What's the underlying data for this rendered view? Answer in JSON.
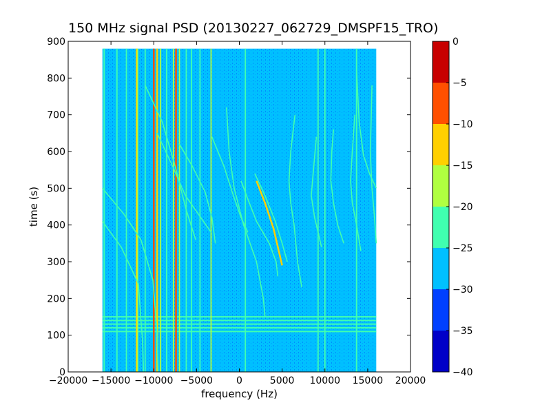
{
  "chart_data": {
    "type": "heatmap",
    "title": "150 MHz signal PSD (20130227_062729_DMSPF15_TRO)",
    "xlabel": "frequency (Hz)",
    "ylabel": "time (s)",
    "xlim": [
      -20000,
      20000
    ],
    "ylim": [
      0,
      900
    ],
    "xticks": [
      -20000,
      -15000,
      -10000,
      -5000,
      0,
      5000,
      10000,
      15000,
      20000
    ],
    "yticks": [
      0,
      100,
      200,
      300,
      400,
      500,
      600,
      700,
      800,
      900
    ],
    "data_extent": {
      "x": [
        -16000,
        16000
      ],
      "y": [
        0,
        880
      ]
    },
    "background_level": -27,
    "grid": false,
    "colorbar": {
      "levels": [
        -40,
        -35,
        -30,
        -25,
        -20,
        -15,
        -10,
        -5,
        0
      ],
      "ticks": [
        -40,
        -35,
        -30,
        -25,
        -20,
        -15,
        -10,
        -5,
        0
      ],
      "colors": [
        "#0000c8",
        "#0040ff",
        "#00c0ff",
        "#40ffb0",
        "#b0ff40",
        "#ffd000",
        "#ff5000",
        "#c80000"
      ]
    },
    "vertical_lines": [
      {
        "x": -15800,
        "level": -22
      },
      {
        "x": -14300,
        "level": -22
      },
      {
        "x": -13200,
        "level": -22
      },
      {
        "x": -12000,
        "level": -12
      },
      {
        "x": -11900,
        "level": -20
      },
      {
        "x": -11000,
        "level": -22
      },
      {
        "x": -10000,
        "level": -8
      },
      {
        "x": -9600,
        "level": -12
      },
      {
        "x": -9200,
        "level": -20
      },
      {
        "x": -8500,
        "level": -22
      },
      {
        "x": -7700,
        "level": -20
      },
      {
        "x": -7400,
        "level": -8
      },
      {
        "x": -7000,
        "level": -20
      },
      {
        "x": -6200,
        "level": -22
      },
      {
        "x": -5600,
        "level": -22
      },
      {
        "x": -4600,
        "level": -22
      },
      {
        "x": -3300,
        "level": -18
      },
      {
        "x": 700,
        "level": -22
      },
      {
        "x": 9200,
        "level": -22
      },
      {
        "x": 10000,
        "level": -22
      },
      {
        "x": 13700,
        "level": -22
      }
    ],
    "horizontal_bands": [
      {
        "y": 150,
        "level": -22
      },
      {
        "y": 140,
        "level": -22
      },
      {
        "y": 130,
        "level": -22
      },
      {
        "y": 120,
        "level": -22
      },
      {
        "y": 110,
        "level": -22
      }
    ],
    "doppler_tracks": [
      {
        "points": [
          [
            -16000,
            500
          ],
          [
            -13500,
            430
          ],
          [
            -11500,
            360
          ],
          [
            -10100,
            250
          ],
          [
            -9600,
            100
          ],
          [
            -9500,
            0
          ]
        ],
        "level": -22
      },
      {
        "points": [
          [
            -16000,
            410
          ],
          [
            -13800,
            340
          ],
          [
            -11800,
            240
          ],
          [
            -11300,
            80
          ],
          [
            -11200,
            0
          ]
        ],
        "level": -22
      },
      {
        "points": [
          [
            -11000,
            780
          ],
          [
            -9000,
            680
          ],
          [
            -7500,
            560
          ],
          [
            -6200,
            440
          ],
          [
            -5100,
            360
          ]
        ],
        "level": -22
      },
      {
        "points": [
          [
            -9600,
            650
          ],
          [
            -7800,
            560
          ],
          [
            -6300,
            480
          ],
          [
            -4500,
            420
          ],
          [
            -3300,
            380
          ]
        ],
        "level": -22
      },
      {
        "points": [
          [
            -7000,
            620
          ],
          [
            -5500,
            560
          ],
          [
            -4000,
            490
          ],
          [
            -3200,
            420
          ],
          [
            -2800,
            350
          ]
        ],
        "level": -22
      },
      {
        "points": [
          [
            -1500,
            720
          ],
          [
            -1200,
            600
          ],
          [
            -600,
            500
          ],
          [
            500,
            400
          ],
          [
            2000,
            300
          ],
          [
            2800,
            200
          ],
          [
            3000,
            150
          ]
        ],
        "level": -22
      },
      {
        "points": [
          [
            -3200,
            640
          ],
          [
            -1800,
            560
          ],
          [
            -700,
            480
          ],
          [
            200,
            420
          ],
          [
            1000,
            380
          ]
        ],
        "level": -22
      },
      {
        "points": [
          [
            200,
            520
          ],
          [
            1000,
            470
          ],
          [
            2000,
            410
          ],
          [
            3500,
            350
          ],
          [
            4300,
            300
          ],
          [
            4500,
            260
          ]
        ],
        "level": -22
      },
      {
        "points": [
          [
            2000,
            520
          ],
          [
            3000,
            460
          ],
          [
            4000,
            390
          ],
          [
            4700,
            320
          ],
          [
            5000,
            290
          ]
        ],
        "level": -12
      },
      {
        "points": [
          [
            1800,
            540
          ],
          [
            3000,
            480
          ],
          [
            4200,
            410
          ],
          [
            5000,
            350
          ],
          [
            5600,
            300
          ]
        ],
        "level": -22
      },
      {
        "points": [
          [
            6500,
            700
          ],
          [
            6000,
            600
          ],
          [
            5800,
            520
          ],
          [
            6000,
            460
          ],
          [
            6400,
            400
          ],
          [
            6800,
            300
          ],
          [
            7300,
            230
          ]
        ],
        "level": -22
      },
      {
        "points": [
          [
            9000,
            640
          ],
          [
            8700,
            560
          ],
          [
            8400,
            480
          ],
          [
            8800,
            420
          ],
          [
            9200,
            380
          ],
          [
            9600,
            340
          ]
        ],
        "level": -22
      },
      {
        "points": [
          [
            11000,
            660
          ],
          [
            10800,
            600
          ],
          [
            10700,
            520
          ],
          [
            11000,
            460
          ],
          [
            11500,
            400
          ],
          [
            12200,
            350
          ]
        ],
        "level": -22
      },
      {
        "points": [
          [
            13700,
            820
          ],
          [
            14000,
            680
          ],
          [
            14500,
            590
          ],
          [
            15200,
            540
          ],
          [
            16000,
            500
          ]
        ],
        "level": -22
      },
      {
        "points": [
          [
            13500,
            700
          ],
          [
            13200,
            600
          ],
          [
            13000,
            520
          ],
          [
            13200,
            460
          ],
          [
            13700,
            400
          ],
          [
            14200,
            330
          ]
        ],
        "level": -22
      },
      {
        "points": [
          [
            15500,
            780
          ],
          [
            15400,
            680
          ],
          [
            15300,
            600
          ],
          [
            15500,
            500
          ],
          [
            15800,
            420
          ],
          [
            16000,
            350
          ]
        ],
        "level": -22
      }
    ]
  }
}
